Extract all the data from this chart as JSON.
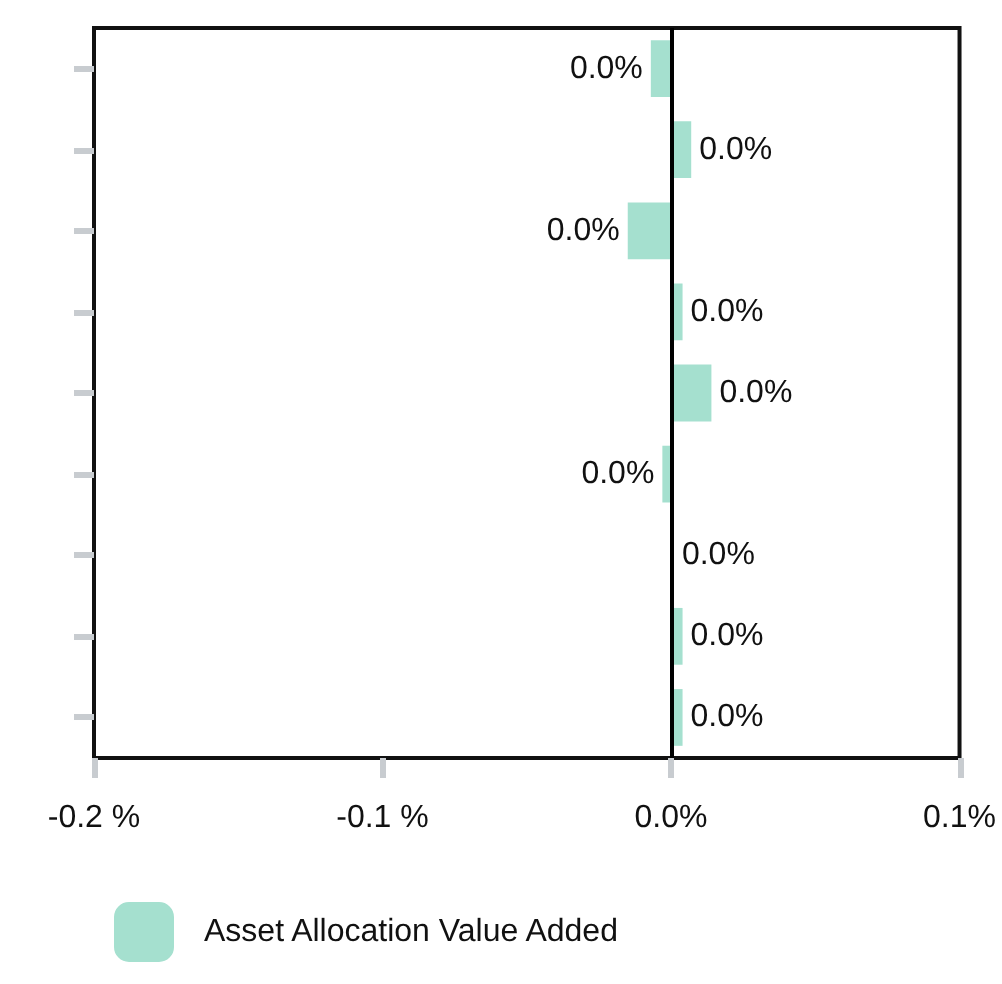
{
  "chart_data": {
    "type": "bar",
    "orientation": "horizontal",
    "categories": [
      null,
      null,
      null,
      null,
      null,
      null,
      null,
      null,
      null
    ],
    "series": [
      {
        "name": "Asset Allocation Value Added",
        "color": "#a5e0cf",
        "values": [
          -0.007,
          0.007,
          -0.015,
          0.004,
          0.014,
          -0.003,
          0.001,
          0.004,
          0.004
        ],
        "value_labels": [
          "0.0%",
          "0.0%",
          "0.0%",
          "0.0%",
          "0.0%",
          "0.0%",
          "0.0%",
          "0.0%",
          "0.0%"
        ]
      }
    ],
    "xlim": [
      -0.2,
      0.1
    ],
    "xticks": [
      {
        "value": -0.2,
        "label": "-0.2 %"
      },
      {
        "value": -0.1,
        "label": "-0.1 %"
      },
      {
        "value": 0,
        "label": "0.0%"
      },
      {
        "value": 0.1,
        "label": "0.1%"
      }
    ],
    "ref_lines": [
      {
        "axis": "x",
        "value": 0,
        "color": "#000000"
      }
    ],
    "grid": false,
    "legend": "bottom"
  }
}
